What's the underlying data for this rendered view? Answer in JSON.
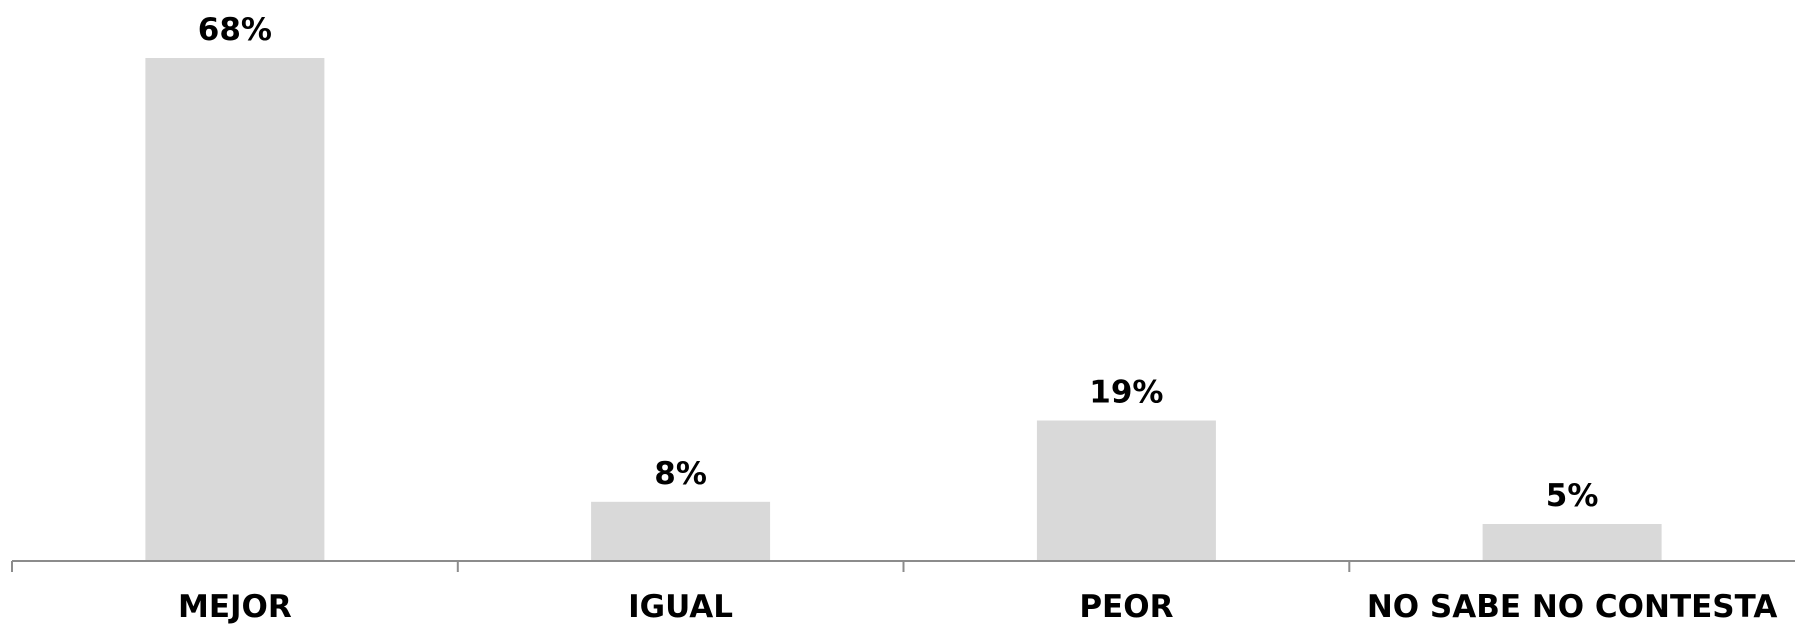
{
  "chart_data": {
    "type": "bar",
    "categories": [
      "MEJOR",
      "IGUAL",
      "PEOR",
      "NO SABE NO CONTESTA"
    ],
    "values": [
      68,
      8,
      19,
      5
    ],
    "data_labels": [
      "68%",
      "8%",
      "19%",
      "5%"
    ],
    "title": "",
    "xlabel": "",
    "ylabel": "",
    "ylim": [
      0,
      68
    ],
    "grid": false,
    "legend": "none",
    "bar_color": "#d9d9d9",
    "axis_color": "#8c8c8c"
  }
}
